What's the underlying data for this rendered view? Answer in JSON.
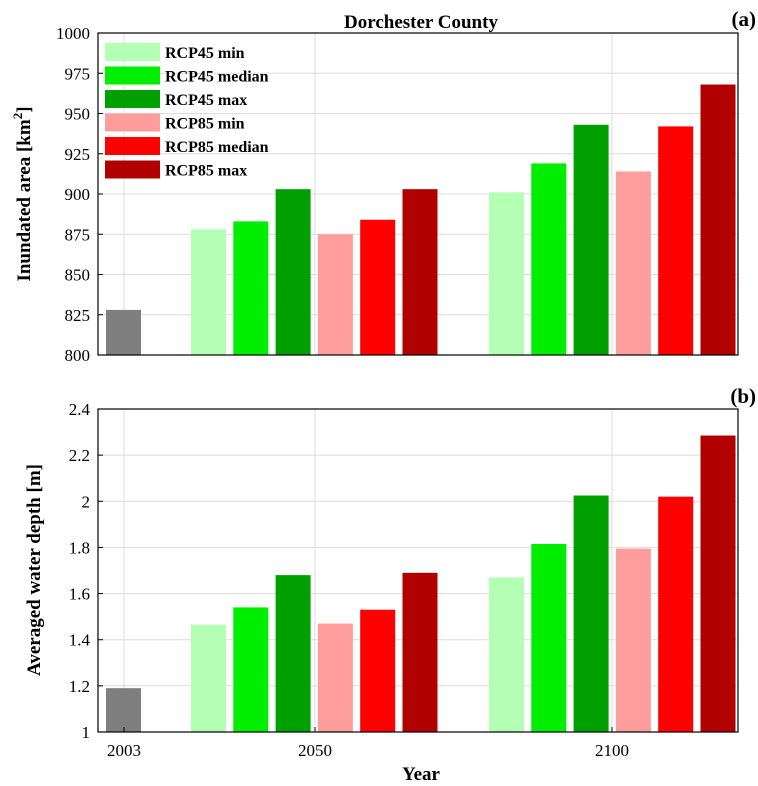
{
  "chart_data": [
    {
      "type": "bar",
      "panel_label": "(a)",
      "title": "Dorchester County",
      "xlabel": "",
      "ylabel": "Inundated area [km",
      "ylabel_sup": "2",
      "ylabel_close": "]",
      "ylim": [
        800,
        1000
      ],
      "yticks": [
        "800",
        "825",
        "850",
        "875",
        "900",
        "925",
        "950",
        "975",
        "1000"
      ],
      "grid": true,
      "legend_position": "top-left",
      "categories": [
        "2003",
        "2050",
        "2100"
      ],
      "baseline": {
        "category": "2003",
        "value": 828,
        "color": "#7f7f7f"
      },
      "series": [
        {
          "name": "RCP45 min",
          "color": "#b3ffb3",
          "values": [
            null,
            878,
            901
          ]
        },
        {
          "name": "RCP45 median",
          "color": "#00ee00",
          "values": [
            null,
            883,
            919
          ]
        },
        {
          "name": "RCP45 max",
          "color": "#00a000",
          "values": [
            null,
            903,
            943
          ]
        },
        {
          "name": "RCP85 min",
          "color": "#ff9c9c",
          "values": [
            null,
            875,
            914
          ]
        },
        {
          "name": "RCP85 median",
          "color": "#ff0000",
          "values": [
            null,
            884,
            942
          ]
        },
        {
          "name": "RCP85 max",
          "color": "#b00000",
          "values": [
            null,
            903,
            968
          ]
        }
      ]
    },
    {
      "type": "bar",
      "panel_label": "(b)",
      "xlabel": "Year",
      "ylabel": "Averaged water depth [m]",
      "ylim": [
        1,
        2.4
      ],
      "yticks": [
        "1",
        "1.2",
        "1.4",
        "1.6",
        "1.8",
        "2",
        "2.2",
        "2.4"
      ],
      "grid": true,
      "categories": [
        "2003",
        "2050",
        "2100"
      ],
      "baseline": {
        "category": "2003",
        "value": 1.19,
        "color": "#7f7f7f"
      },
      "series": [
        {
          "color": "#b3ffb3",
          "values": [
            null,
            1.465,
            1.67
          ]
        },
        {
          "color": "#00ee00",
          "values": [
            null,
            1.54,
            1.815
          ]
        },
        {
          "color": "#00a000",
          "values": [
            null,
            1.68,
            2.025
          ]
        },
        {
          "color": "#ff9c9c",
          "values": [
            null,
            1.47,
            1.795
          ]
        },
        {
          "color": "#ff0000",
          "values": [
            null,
            1.53,
            2.02
          ]
        },
        {
          "color": "#b00000",
          "values": [
            null,
            1.69,
            2.285
          ]
        }
      ]
    }
  ]
}
